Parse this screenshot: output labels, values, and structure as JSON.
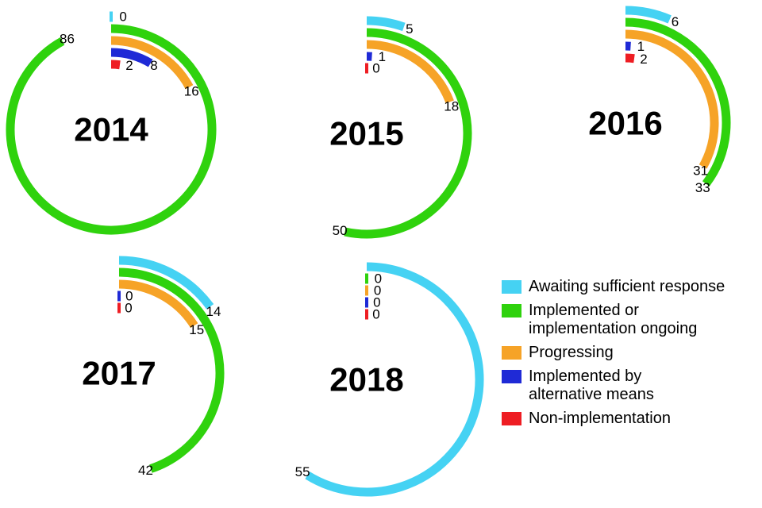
{
  "legend": {
    "items": [
      {
        "key": "awaiting",
        "label": "Awaiting sufficient response",
        "color": "#45d2f3"
      },
      {
        "key": "implemented",
        "label": "Implemented or\nimplementation ongoing",
        "color": "#2fd20d"
      },
      {
        "key": "progressing",
        "label": "Progressing",
        "color": "#f6a327"
      },
      {
        "key": "alternative",
        "label": "Implemented by\nalternative means",
        "color": "#1f2ad6"
      },
      {
        "key": "non-implementation",
        "label": "Non-implementation",
        "color": "#ee1d23"
      }
    ]
  },
  "chart_data": {
    "type": "bar",
    "subtype": "radial-arc",
    "legend_position": "bottom-right",
    "categories": [
      "Awaiting sufficient response",
      "Implemented or implementation ongoing",
      "Progressing",
      "Implemented by alternative means",
      "Non-implementation"
    ],
    "category_keys": [
      "awaiting",
      "implemented",
      "progressing",
      "alternative",
      "non-implementation"
    ],
    "colors": [
      "#45d2f3",
      "#2fd20d",
      "#f6a327",
      "#1f2ad6",
      "#ee1d23"
    ],
    "charts": [
      {
        "year": "2014",
        "values": [
          0,
          86,
          16,
          8,
          2
        ]
      },
      {
        "year": "2015",
        "values": [
          5,
          50,
          18,
          1,
          0
        ]
      },
      {
        "year": "2016",
        "values": [
          6,
          33,
          31,
          1,
          2
        ]
      },
      {
        "year": "2017",
        "values": [
          14,
          42,
          15,
          0,
          0
        ]
      },
      {
        "year": "2018",
        "values": [
          55,
          0,
          0,
          0,
          0
        ]
      }
    ]
  }
}
